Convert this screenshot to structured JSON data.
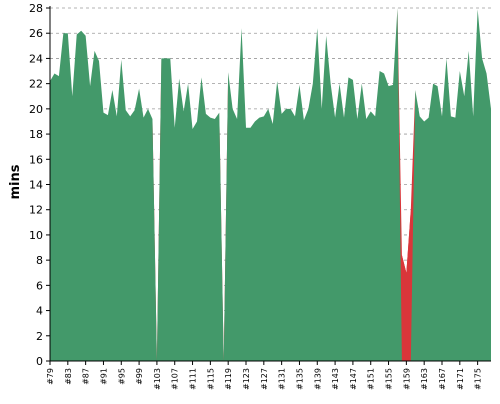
{
  "chart_data": {
    "type": "area",
    "ylabel": "mins",
    "ylim": [
      0,
      28
    ],
    "y_ticks": [
      0,
      2,
      4,
      6,
      8,
      10,
      12,
      14,
      16,
      18,
      20,
      22,
      24,
      26,
      28
    ],
    "x_tick_labels": [
      "#79",
      "#83",
      "#87",
      "#91",
      "#95",
      "#99",
      "#103",
      "#107",
      "#111",
      "#115",
      "#119",
      "#123",
      "#127",
      "#131",
      "#135",
      "#139",
      "#143",
      "#147",
      "#151",
      "#155",
      "#159",
      "#163",
      "#167",
      "#171",
      "#175"
    ],
    "grid": true,
    "colors": {
      "success": "#43996a",
      "failure": "#d9363a",
      "grid": "#9a9a9a",
      "axis": "#000000"
    },
    "series": [
      {
        "x": [
          79,
          80,
          81,
          82,
          83,
          84,
          85,
          86,
          87,
          88,
          89,
          90,
          91,
          92,
          93,
          94,
          95,
          96,
          97,
          98,
          99,
          100,
          101,
          102,
          103,
          104,
          105,
          106,
          107,
          108,
          109,
          110,
          111,
          112,
          113,
          114,
          115,
          116,
          117,
          118,
          119,
          120,
          121,
          122,
          123,
          124,
          125,
          126,
          127,
          128,
          129,
          130,
          131,
          132,
          133,
          134,
          135,
          136,
          137,
          138,
          139,
          140,
          141,
          142,
          143,
          144,
          145,
          146,
          147,
          148,
          149,
          150,
          151,
          152,
          153,
          154,
          155,
          156,
          157,
          158,
          159,
          160,
          161,
          162,
          163,
          164,
          165,
          166,
          167,
          168,
          169,
          170,
          171,
          172,
          173,
          174,
          175,
          176,
          177,
          178
        ],
        "values": [
          22.2,
          22.8,
          22.6,
          26.0,
          26.0,
          21.0,
          25.9,
          26.2,
          25.8,
          21.8,
          24.6,
          23.8,
          19.7,
          19.5,
          21.5,
          19.4,
          23.9,
          19.9,
          19.4,
          19.9,
          21.6,
          19.3,
          20.0,
          19.2,
          0.0,
          24.0,
          24.0,
          24.0,
          18.5,
          22.4,
          19.8,
          22.0,
          18.4,
          19.0,
          22.5,
          19.6,
          19.3,
          19.2,
          19.7,
          0.0,
          22.9,
          20.0,
          19.2,
          26.4,
          18.5,
          18.5,
          19.0,
          19.3,
          19.4,
          20.0,
          18.8,
          22.2,
          19.6,
          20.0,
          20.0,
          19.4,
          21.9,
          19.1,
          20.0,
          22.0,
          26.4,
          20.0,
          25.8,
          22.0,
          19.3,
          22.0,
          19.3,
          22.5,
          22.3,
          19.2,
          22.0,
          19.2,
          19.8,
          19.4,
          23.0,
          22.8,
          21.8,
          21.9,
          28.0,
          8.4,
          7.0,
          12.0,
          21.5,
          19.4,
          19.0,
          19.3,
          22.0,
          21.8,
          19.4,
          24.0,
          19.4,
          19.3,
          23.0,
          21.0,
          24.6,
          19.4,
          27.9,
          24.0,
          22.8,
          20.0
        ],
        "failed_builds": [
          103,
          118,
          158,
          159,
          160
        ]
      }
    ]
  }
}
